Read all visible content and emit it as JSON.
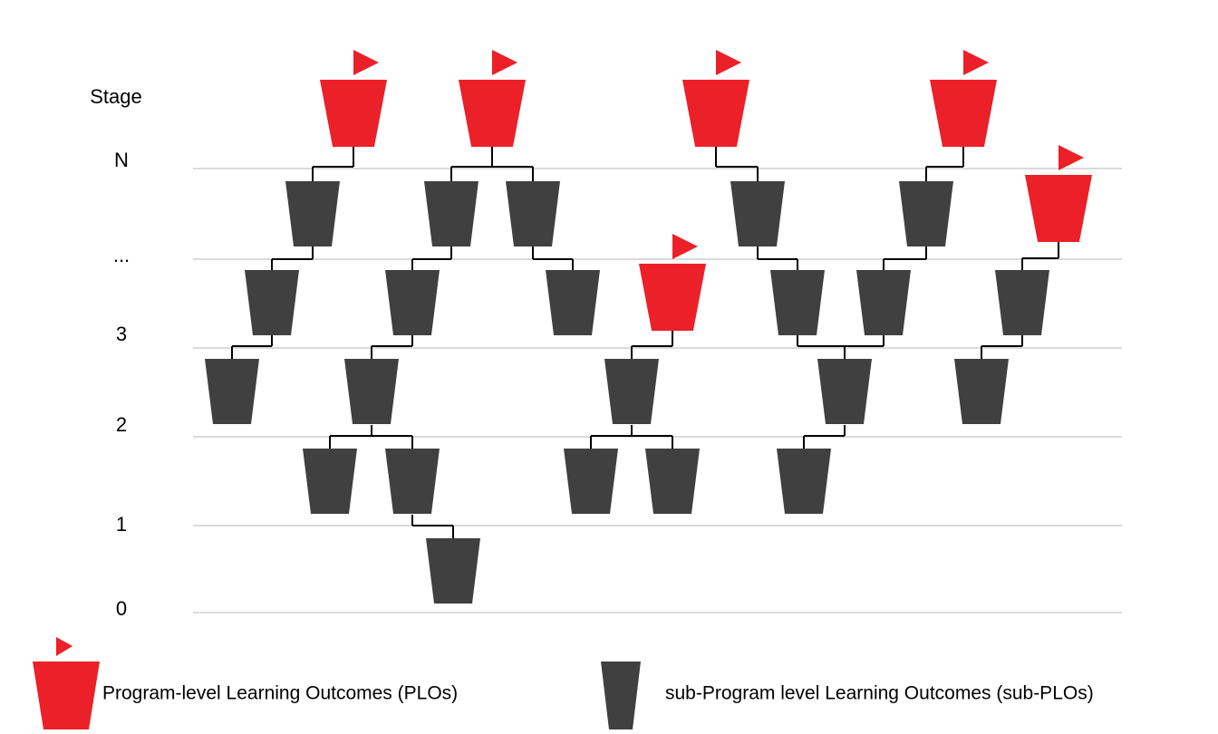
{
  "stage_label": "Stage",
  "stages": [
    "N",
    "...",
    "3",
    "2",
    "1",
    "0"
  ],
  "legend": {
    "plo": "Program-level Learning Outcomes (PLOs)",
    "sub_plo": "sub-Program level Learning Outcomes (sub-PLOs)"
  }
}
